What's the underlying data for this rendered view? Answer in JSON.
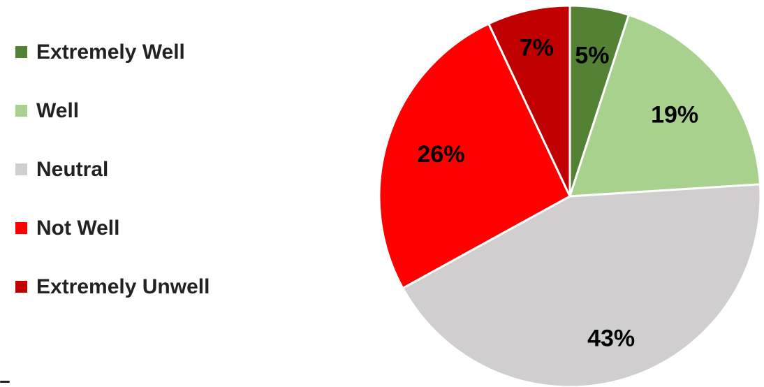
{
  "chart_data": {
    "type": "pie",
    "title": "",
    "legend_position": "left",
    "start_angle_deg": 0,
    "direction": "clockwise",
    "slices": [
      {
        "label": "Extremely Well",
        "value": 5,
        "display": "5%",
        "color": "#548235"
      },
      {
        "label": "Well",
        "value": 19,
        "display": "19%",
        "color": "#A9D18E"
      },
      {
        "label": "Neutral",
        "value": 43,
        "display": "43%",
        "color": "#D0CECE"
      },
      {
        "label": "Not Well",
        "value": 26,
        "display": "26%",
        "color": "#FF0000"
      },
      {
        "label": "Extremely Unwell",
        "value": 7,
        "display": "7%",
        "color": "#C00000"
      }
    ]
  }
}
